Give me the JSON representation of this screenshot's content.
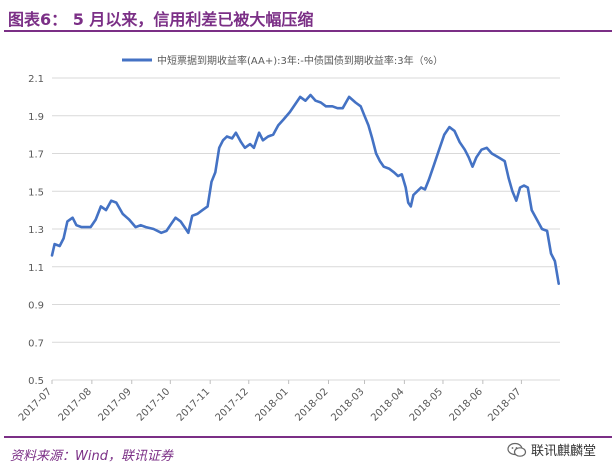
{
  "header": {
    "title": "图表6：  5 月以来，信用利差已被大幅压缩"
  },
  "footer": {
    "source": "资料来源：Wind，联讯证券",
    "watermark": "联讯麒麟堂"
  },
  "colors": {
    "accent": "#7b2f86",
    "series": "#4472c4",
    "grid": "#d9d9d9",
    "axis_text": "#595959"
  },
  "icons": {
    "watermark": "wechat-icon"
  },
  "chart_data": {
    "type": "line",
    "legend": "top-center",
    "grid": true,
    "ylim": [
      0.5,
      2.1
    ],
    "yticks": [
      "0.5",
      "0.7",
      "0.9",
      "1.1",
      "1.3",
      "1.5",
      "1.7",
      "1.9",
      "2.1"
    ],
    "xlim": [
      "2017-07-01",
      "2018-07-31"
    ],
    "xticks": [
      "2017-07",
      "2017-08",
      "2017-09",
      "2017-10",
      "2017-11",
      "2017-12",
      "2018-01",
      "2018-02",
      "2018-03",
      "2018-04",
      "2018-05",
      "2018-06",
      "2018-07"
    ],
    "series": [
      {
        "name": "中短票据到期收益率(AA+):3年:-中债国债到期收益率:3年（%）",
        "points": [
          [
            "2017-07-01",
            1.16
          ],
          [
            "2017-07-03",
            1.22
          ],
          [
            "2017-07-07",
            1.21
          ],
          [
            "2017-07-10",
            1.25
          ],
          [
            "2017-07-13",
            1.34
          ],
          [
            "2017-07-17",
            1.36
          ],
          [
            "2017-07-20",
            1.32
          ],
          [
            "2017-07-24",
            1.31
          ],
          [
            "2017-07-31",
            1.31
          ],
          [
            "2017-08-04",
            1.35
          ],
          [
            "2017-08-08",
            1.42
          ],
          [
            "2017-08-12",
            1.4
          ],
          [
            "2017-08-16",
            1.45
          ],
          [
            "2017-08-20",
            1.44
          ],
          [
            "2017-08-25",
            1.38
          ],
          [
            "2017-08-30",
            1.35
          ],
          [
            "2017-09-04",
            1.31
          ],
          [
            "2017-09-08",
            1.32
          ],
          [
            "2017-09-12",
            1.31
          ],
          [
            "2017-09-18",
            1.3
          ],
          [
            "2017-09-24",
            1.28
          ],
          [
            "2017-09-28",
            1.29
          ],
          [
            "2017-10-02",
            1.33
          ],
          [
            "2017-10-05",
            1.36
          ],
          [
            "2017-10-09",
            1.34
          ],
          [
            "2017-10-13",
            1.3
          ],
          [
            "2017-10-15",
            1.28
          ],
          [
            "2017-10-18",
            1.37
          ],
          [
            "2017-10-22",
            1.38
          ],
          [
            "2017-10-26",
            1.4
          ],
          [
            "2017-10-30",
            1.42
          ],
          [
            "2017-11-02",
            1.55
          ],
          [
            "2017-11-05",
            1.6
          ],
          [
            "2017-11-08",
            1.73
          ],
          [
            "2017-11-11",
            1.77
          ],
          [
            "2017-11-14",
            1.79
          ],
          [
            "2017-11-18",
            1.78
          ],
          [
            "2017-11-21",
            1.81
          ],
          [
            "2017-11-25",
            1.76
          ],
          [
            "2017-11-28",
            1.73
          ],
          [
            "2017-12-02",
            1.75
          ],
          [
            "2017-12-05",
            1.73
          ],
          [
            "2017-12-09",
            1.81
          ],
          [
            "2017-12-12",
            1.77
          ],
          [
            "2017-12-16",
            1.79
          ],
          [
            "2017-12-20",
            1.8
          ],
          [
            "2017-12-24",
            1.85
          ],
          [
            "2017-12-28",
            1.88
          ],
          [
            "2018-01-02",
            1.92
          ],
          [
            "2018-01-06",
            1.96
          ],
          [
            "2018-01-10",
            2.0
          ],
          [
            "2018-01-14",
            1.98
          ],
          [
            "2018-01-18",
            2.01
          ],
          [
            "2018-01-22",
            1.98
          ],
          [
            "2018-01-26",
            1.97
          ],
          [
            "2018-01-30",
            1.95
          ],
          [
            "2018-02-04",
            1.95
          ],
          [
            "2018-02-08",
            1.94
          ],
          [
            "2018-02-12",
            1.94
          ],
          [
            "2018-02-17",
            2.0
          ],
          [
            "2018-02-22",
            1.97
          ],
          [
            "2018-02-26",
            1.95
          ],
          [
            "2018-03-01",
            1.9
          ],
          [
            "2018-03-04",
            1.85
          ],
          [
            "2018-03-07",
            1.78
          ],
          [
            "2018-03-10",
            1.7
          ],
          [
            "2018-03-13",
            1.66
          ],
          [
            "2018-03-16",
            1.63
          ],
          [
            "2018-03-20",
            1.62
          ],
          [
            "2018-03-24",
            1.6
          ],
          [
            "2018-03-27",
            1.58
          ],
          [
            "2018-03-30",
            1.59
          ],
          [
            "2018-04-02",
            1.52
          ],
          [
            "2018-04-04",
            1.44
          ],
          [
            "2018-04-06",
            1.42
          ],
          [
            "2018-04-08",
            1.48
          ],
          [
            "2018-04-11",
            1.5
          ],
          [
            "2018-04-14",
            1.52
          ],
          [
            "2018-04-17",
            1.51
          ],
          [
            "2018-04-20",
            1.56
          ],
          [
            "2018-04-24",
            1.64
          ],
          [
            "2018-04-28",
            1.72
          ],
          [
            "2018-05-02",
            1.8
          ],
          [
            "2018-05-06",
            1.84
          ],
          [
            "2018-05-10",
            1.82
          ],
          [
            "2018-05-14",
            1.76
          ],
          [
            "2018-05-18",
            1.72
          ],
          [
            "2018-05-21",
            1.68
          ],
          [
            "2018-05-24",
            1.63
          ],
          [
            "2018-05-27",
            1.68
          ],
          [
            "2018-05-31",
            1.72
          ],
          [
            "2018-06-04",
            1.73
          ],
          [
            "2018-06-08",
            1.7
          ],
          [
            "2018-06-13",
            1.68
          ],
          [
            "2018-06-18",
            1.66
          ],
          [
            "2018-06-21",
            1.57
          ],
          [
            "2018-06-24",
            1.5
          ],
          [
            "2018-06-27",
            1.45
          ],
          [
            "2018-06-30",
            1.52
          ],
          [
            "2018-07-03",
            1.53
          ],
          [
            "2018-07-06",
            1.52
          ],
          [
            "2018-07-09",
            1.4
          ],
          [
            "2018-07-13",
            1.35
          ],
          [
            "2018-07-17",
            1.3
          ],
          [
            "2018-07-21",
            1.29
          ],
          [
            "2018-07-24",
            1.17
          ],
          [
            "2018-07-27",
            1.13
          ],
          [
            "2018-07-30",
            1.01
          ]
        ]
      }
    ]
  }
}
